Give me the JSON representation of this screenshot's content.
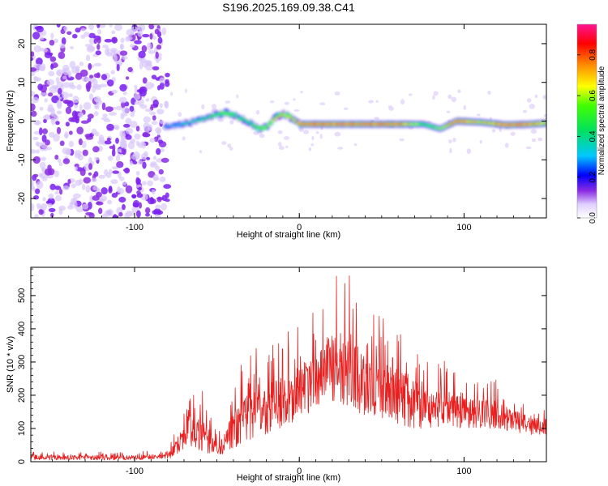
{
  "title": "S196.2025.169.09.38.C41",
  "chart_data": [
    {
      "type": "heatmap",
      "xlabel": "Height of straight line (km)",
      "ylabel": "Frequency (Hz)",
      "xlim": [
        -163,
        150
      ],
      "ylim": [
        -25,
        25
      ],
      "x_ticks": [
        "-100",
        "0",
        "100"
      ],
      "y_ticks": [
        "-20",
        "-10",
        "0",
        "10",
        "20"
      ],
      "x_tick_values": [
        -100,
        0,
        100
      ],
      "y_tick_values": [
        -20,
        -10,
        0,
        10,
        20
      ],
      "colorbar": {
        "label": "Normalized spectral amplitude",
        "range": [
          0,
          0.95
        ],
        "ticks": [
          "0.0",
          "0.2",
          "0.4",
          "0.6",
          "0.8"
        ],
        "tick_values": [
          0,
          0.2,
          0.4,
          0.6,
          0.8
        ]
      },
      "ridge": {
        "x": [
          -82,
          -75,
          -68,
          -60,
          -52,
          -45,
          -40,
          -35,
          -30,
          -25,
          -20,
          -15,
          -10,
          -5,
          0,
          20,
          40,
          60,
          75,
          85,
          95,
          110,
          125,
          140,
          150
        ],
        "frequency": [
          -1.5,
          -1.0,
          -0.5,
          0.5,
          1.5,
          2.2,
          1.5,
          0.5,
          -0.5,
          -2.0,
          -1.5,
          1.0,
          1.8,
          0.8,
          -0.8,
          -0.8,
          -0.8,
          -0.8,
          -0.8,
          -2.0,
          0.0,
          -0.3,
          -1.0,
          -0.8,
          -0.5
        ],
        "amplitude": [
          0.3,
          0.35,
          0.4,
          0.45,
          0.55,
          0.6,
          0.55,
          0.5,
          0.5,
          0.6,
          0.65,
          0.75,
          0.7,
          0.7,
          0.85,
          0.9,
          0.9,
          0.85,
          0.55,
          0.6,
          0.9,
          0.7,
          0.9,
          0.85,
          0.7
        ]
      },
      "noise_region": {
        "x_from": -163,
        "x_to": -80,
        "amplitude": 0.1
      }
    },
    {
      "type": "line",
      "xlabel": "Height of straight line (km)",
      "ylabel": "SNR (10 * v/v)",
      "xlim": [
        -163,
        150
      ],
      "ylim": [
        0,
        585
      ],
      "x_ticks": [
        "-100",
        "0",
        "100"
      ],
      "y_ticks": [
        "0",
        "100",
        "200",
        "300",
        "400",
        "500"
      ],
      "x_tick_values": [
        -100,
        0,
        100
      ],
      "y_tick_values": [
        0,
        100,
        200,
        300,
        400,
        500
      ],
      "color": "#e82020",
      "envelope": {
        "x": [
          -163,
          -130,
          -100,
          -85,
          -78,
          -72,
          -68,
          -65,
          -60,
          -55,
          -50,
          -45,
          -40,
          -35,
          -30,
          -20,
          -10,
          0,
          10,
          20,
          25,
          30,
          35,
          40,
          50,
          60,
          70,
          80,
          90,
          100,
          110,
          120,
          130,
          140,
          150
        ],
        "lower": [
          5,
          5,
          5,
          8,
          10,
          30,
          50,
          40,
          30,
          20,
          20,
          25,
          40,
          50,
          60,
          80,
          100,
          130,
          160,
          180,
          170,
          160,
          150,
          130,
          120,
          110,
          100,
          100,
          100,
          100,
          100,
          100,
          90,
          80,
          80
        ],
        "upper": [
          30,
          30,
          30,
          35,
          60,
          140,
          230,
          200,
          230,
          180,
          80,
          140,
          250,
          300,
          330,
          360,
          380,
          420,
          470,
          560,
          580,
          570,
          520,
          480,
          460,
          420,
          380,
          330,
          300,
          280,
          260,
          250,
          210,
          180,
          170
        ]
      }
    }
  ]
}
